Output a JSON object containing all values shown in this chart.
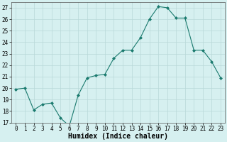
{
  "x": [
    0,
    1,
    2,
    3,
    4,
    5,
    6,
    7,
    8,
    9,
    10,
    11,
    12,
    13,
    14,
    15,
    16,
    17,
    18,
    19,
    20,
    21,
    22,
    23
  ],
  "y": [
    19.9,
    20.0,
    18.1,
    18.6,
    18.7,
    17.4,
    16.7,
    19.4,
    20.9,
    21.1,
    21.2,
    22.6,
    23.3,
    23.3,
    24.4,
    26.0,
    27.1,
    27.0,
    26.1,
    26.1,
    23.3,
    23.3,
    22.3,
    20.9
  ],
  "line_color": "#1a7a6e",
  "marker": "D",
  "marker_size": 2,
  "bg_color": "#d6f0f0",
  "grid_color": "#b8d8d8",
  "xlabel": "Humidex (Indice chaleur)",
  "ylim": [
    17,
    27.5
  ],
  "xlim": [
    -0.5,
    23.5
  ],
  "yticks": [
    17,
    18,
    19,
    20,
    21,
    22,
    23,
    24,
    25,
    26,
    27
  ],
  "xticks": [
    0,
    1,
    2,
    3,
    4,
    5,
    6,
    7,
    8,
    9,
    10,
    11,
    12,
    13,
    14,
    15,
    16,
    17,
    18,
    19,
    20,
    21,
    22,
    23
  ],
  "xlabel_fontsize": 7,
  "tick_fontsize": 5.5
}
